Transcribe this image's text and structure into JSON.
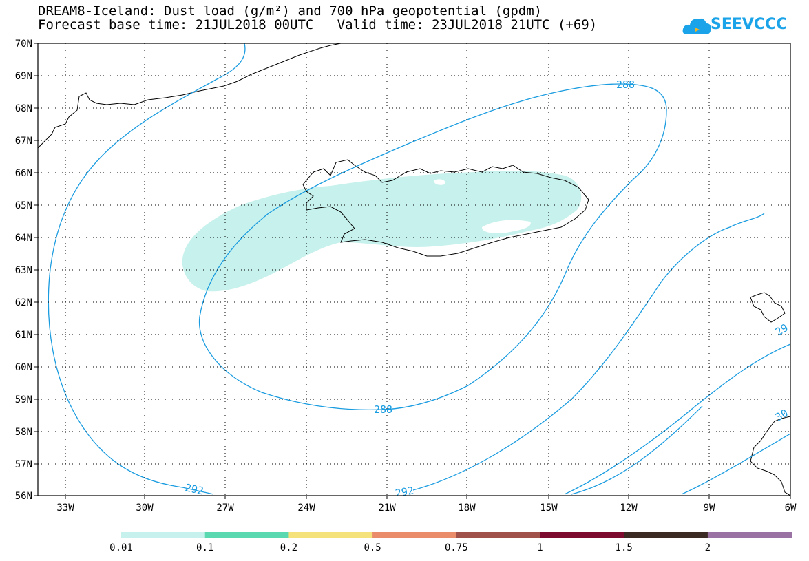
{
  "title_line1": "DREAM8-Iceland: Dust load (g/m²) and 700 hPa geopotential (gpdm)",
  "title_line2": "Forecast base time: 21JUL2018 00UTC   Valid time: 23JUL2018 21UTC (+69)",
  "logo_text": "SEEVCCC",
  "lat_labels": [
    "70N",
    "69N",
    "68N",
    "67N",
    "66N",
    "65N",
    "64N",
    "63N",
    "62N",
    "61N",
    "60N",
    "59N",
    "58N",
    "57N",
    "56N"
  ],
  "lon_labels": [
    "33W",
    "30W",
    "27W",
    "24W",
    "21W",
    "18W",
    "15W",
    "12W",
    "9W",
    "6W"
  ],
  "contour_labels": [
    "288",
    "288",
    "292",
    "292",
    "29",
    "30"
  ],
  "colorbar": {
    "colors": [
      "#c7f1ec",
      "#5ad9b0",
      "#f5e27a",
      "#ea8c6a",
      "#a0514a",
      "#7c0b2f",
      "#3b2a24",
      "#9a72a3"
    ],
    "labels": [
      "0.01",
      "0.1",
      "0.2",
      "0.5",
      "0.75",
      "1",
      "1.5",
      "2"
    ]
  }
}
